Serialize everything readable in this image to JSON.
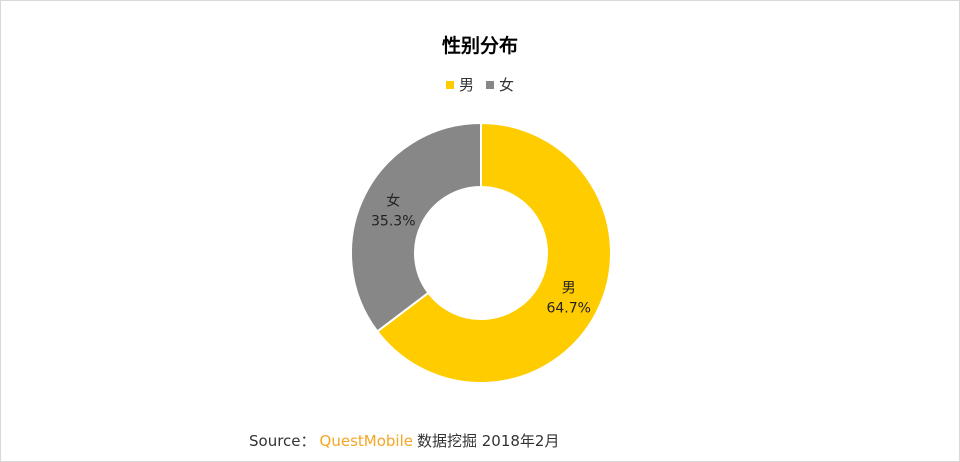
{
  "chart_data": {
    "type": "pie",
    "subtype": "donut",
    "title": "性别分布",
    "legend_position": "top",
    "series": [
      {
        "name": "男",
        "value": 64.7,
        "label": "64.7%",
        "color": "#FFCC00"
      },
      {
        "name": "女",
        "value": 35.3,
        "label": "35.3%",
        "color": "#878787"
      }
    ]
  },
  "source": {
    "prefix": "Source：",
    "brand": "QuestMobile",
    "suffix": "数据挖掘 2018年2月"
  }
}
